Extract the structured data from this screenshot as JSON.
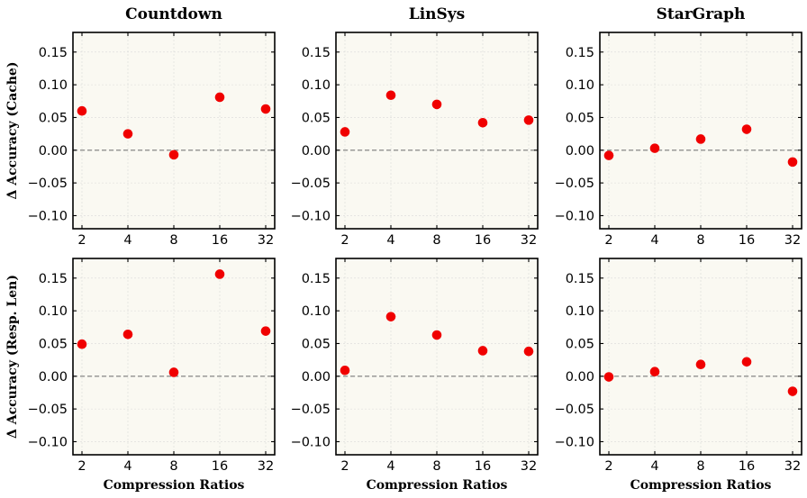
{
  "chart_data": {
    "type": "scatter",
    "figure": "grid of 2x3 scatter panels",
    "column_titles": [
      "Countdown",
      "LinSys",
      "StarGraph"
    ],
    "row_ylabels": [
      "Δ Accuracy (Cache)",
      "Δ Accuracy (Resp. Len)"
    ],
    "xlabel": "Compression Ratios",
    "x_categories": [
      "2",
      "4",
      "8",
      "16",
      "32"
    ],
    "ylim": [
      -0.12,
      0.18
    ],
    "yticks": [
      "0.15",
      "0.10",
      "0.05",
      "0.00",
      "−0.05",
      "−0.10"
    ],
    "ytick_values": [
      0.15,
      0.1,
      0.05,
      0.0,
      -0.05,
      -0.1
    ],
    "reference_line": 0.0,
    "point_color": "#f00000",
    "panels": [
      {
        "row": 0,
        "col": 0,
        "title": "Countdown",
        "ylabel": "Δ Accuracy (Cache)",
        "values": [
          0.06,
          0.025,
          -0.007,
          0.081,
          0.063
        ]
      },
      {
        "row": 0,
        "col": 1,
        "title": "LinSys",
        "ylabel": "Δ Accuracy (Cache)",
        "values": [
          0.028,
          0.084,
          0.07,
          0.042,
          0.046
        ]
      },
      {
        "row": 0,
        "col": 2,
        "title": "StarGraph",
        "ylabel": "Δ Accuracy (Cache)",
        "values": [
          -0.008,
          0.003,
          0.017,
          0.032,
          -0.018
        ]
      },
      {
        "row": 1,
        "col": 0,
        "title": "Countdown",
        "ylabel": "Δ Accuracy (Resp. Len)",
        "values": [
          0.049,
          0.064,
          0.006,
          0.156,
          0.069
        ]
      },
      {
        "row": 1,
        "col": 1,
        "title": "LinSys",
        "ylabel": "Δ Accuracy (Resp. Len)",
        "values": [
          0.009,
          0.091,
          0.063,
          0.039,
          0.038
        ]
      },
      {
        "row": 1,
        "col": 2,
        "title": "StarGraph",
        "ylabel": "Δ Accuracy (Resp. Len)",
        "values": [
          -0.001,
          0.007,
          0.018,
          0.022,
          -0.023
        ]
      }
    ]
  }
}
